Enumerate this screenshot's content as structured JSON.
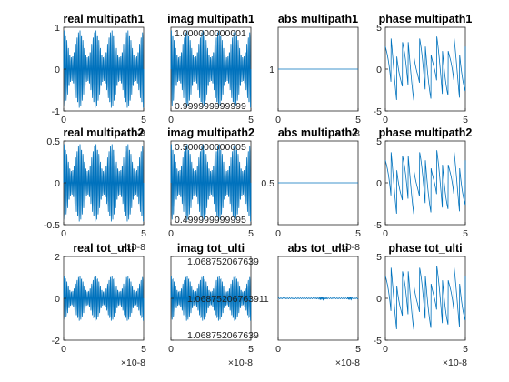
{
  "chart_data": [
    {
      "type": "line",
      "title": "real multipath1",
      "xticks": [
        "0",
        "5"
      ],
      "yticks": [
        "-1",
        "0",
        "1"
      ],
      "ylim": [
        -1,
        1
      ],
      "xlim": [
        0,
        5e-08
      ],
      "x_exponent": "×10^-8",
      "pattern": "oscillating"
    },
    {
      "type": "line",
      "title": "imag multipath1",
      "xticks": [
        "0",
        "5"
      ],
      "yticks": [
        "0.999999999999",
        "1.000000000001"
      ],
      "ylim": [
        -1,
        1
      ],
      "xlim": [
        0,
        5e-08
      ],
      "x_exponent": "",
      "pattern": "oscillating"
    },
    {
      "type": "line",
      "title": "abs multipath1",
      "xticks": [
        "0",
        "5"
      ],
      "yticks": [
        "1"
      ],
      "ylim": [
        0.999999999999,
        1.000000000001
      ],
      "xlim": [
        0,
        5e-08
      ],
      "x_exponent": "×10^-8",
      "pattern": "flat",
      "value": 1
    },
    {
      "type": "line",
      "title": "phase multipath1",
      "xticks": [
        "0",
        "5"
      ],
      "yticks": [
        "-5",
        "0",
        "5"
      ],
      "ylim": [
        -5,
        5
      ],
      "xlim": [
        0,
        5e-08
      ],
      "x_exponent": "",
      "pattern": "sawtooth"
    },
    {
      "type": "line",
      "title": "real multipath2",
      "xticks": [
        "0",
        "5"
      ],
      "yticks": [
        "-0.5",
        "0",
        "0.5"
      ],
      "ylim": [
        -0.5,
        0.5
      ],
      "xlim": [
        0,
        5e-08
      ],
      "x_exponent": "×10^-8",
      "pattern": "oscillating"
    },
    {
      "type": "line",
      "title": "imag multipath2",
      "xticks": [
        "0",
        "5"
      ],
      "yticks": [
        "0.499999999995",
        "0.500000000005"
      ],
      "ylim": [
        -0.5,
        0.5
      ],
      "xlim": [
        0,
        5e-08
      ],
      "x_exponent": "",
      "pattern": "oscillating"
    },
    {
      "type": "line",
      "title": "abs multipath2",
      "xticks": [
        "0",
        "5"
      ],
      "yticks": [
        "0.5"
      ],
      "ylim": [
        0.499999999995,
        0.500000000005
      ],
      "xlim": [
        0,
        5e-08
      ],
      "x_exponent": "×10^-8",
      "pattern": "flat",
      "value": 0.5
    },
    {
      "type": "line",
      "title": "phase multipath2",
      "xticks": [
        "0",
        "5"
      ],
      "yticks": [
        "-5",
        "0",
        "5"
      ],
      "ylim": [
        -5,
        5
      ],
      "xlim": [
        0,
        5e-08
      ],
      "x_exponent": "",
      "pattern": "sawtooth"
    },
    {
      "type": "line",
      "title": "real tot_ulti",
      "xticks": [
        "0",
        "5"
      ],
      "yticks": [
        "-2",
        "0",
        "2"
      ],
      "ylim": [
        -2,
        2
      ],
      "xlim": [
        0,
        5e-08
      ],
      "x_exponent": "×10^-8",
      "pattern": "oscillating"
    },
    {
      "type": "line",
      "title": "imag tot_ulti",
      "xticks": [
        "0",
        "5"
      ],
      "yticks": [
        "1.068752067639",
        "1.068752067639",
        "1.068752067639"
      ],
      "yticks_full": [
        "1.068752067639",
        "1.06875206763911",
        "1.068752067639"
      ],
      "ylim": [
        -2,
        2
      ],
      "xlim": [
        0,
        5e-08
      ],
      "x_exponent": "×10^-8",
      "pattern": "oscillating"
    },
    {
      "type": "line",
      "title": "abs tot_ulti",
      "xticks": [
        "0",
        "5"
      ],
      "yticks": [],
      "ylim": [
        1.0687520676,
        1.0687520677
      ],
      "xlim": [
        0,
        5e-08
      ],
      "x_exponent": "×10^-8",
      "pattern": "flat-noisy",
      "value": 1.06875206763
    },
    {
      "type": "line",
      "title": "phase tot_ulti",
      "xticks": [
        "0",
        "5"
      ],
      "yticks": [
        "-5",
        "0",
        "5"
      ],
      "ylim": [
        -5,
        5
      ],
      "xlim": [
        0,
        5e-08
      ],
      "x_exponent": "×10^-8",
      "pattern": "sawtooth"
    }
  ]
}
